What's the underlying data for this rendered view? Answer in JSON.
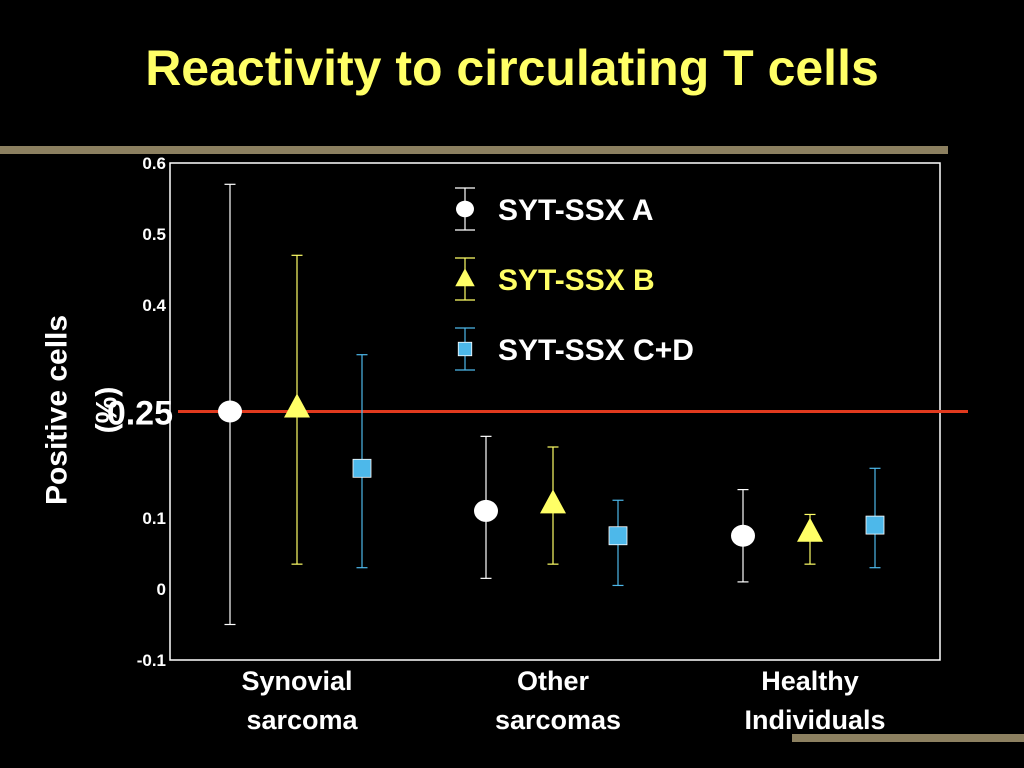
{
  "title": "Reactivity to circulating T cells",
  "colors": {
    "background": "#000000",
    "title": "#ffff66",
    "accent_bar": "#8c8060",
    "axis": "#ffffff",
    "reference_line": "#e03a1e"
  },
  "chart_data": {
    "type": "scatter",
    "subtype": "dot-with-error-bars",
    "title": "",
    "ylabel_lines": [
      "Positive cells",
      "(%)"
    ],
    "xlabel": "",
    "ylim": [
      -0.1,
      0.6
    ],
    "yticks": [
      {
        "value": 0.6,
        "label": "0.6"
      },
      {
        "value": 0.5,
        "label": "0.5"
      },
      {
        "value": 0.4,
        "label": "0.4"
      },
      {
        "value": 0.1,
        "label": "0.1"
      },
      {
        "value": 0,
        "label": "0"
      },
      {
        "value": -0.1,
        "label": "-0.1"
      }
    ],
    "reference_line": {
      "value": 0.25,
      "label": "0.25",
      "color": "#e03a1e"
    },
    "categories": [
      {
        "lines": [
          "Synovial",
          "sarcoma"
        ]
      },
      {
        "lines": [
          "Other",
          "sarcomas"
        ]
      },
      {
        "lines": [
          "Healthy",
          "Individuals"
        ]
      }
    ],
    "legend": {
      "placement": "top-right"
    },
    "series": [
      {
        "name": "SYT-SSX A",
        "marker": "circle",
        "color": "#ffffff",
        "label_color": "#ffffff",
        "points": [
          {
            "mean": 0.25,
            "low": -0.05,
            "high": 0.57
          },
          {
            "mean": 0.11,
            "low": 0.015,
            "high": 0.215
          },
          {
            "mean": 0.075,
            "low": 0.01,
            "high": 0.14
          }
        ]
      },
      {
        "name": "SYT-SSX B",
        "marker": "triangle",
        "color": "#ffff66",
        "label_color": "#ffff66",
        "points": [
          {
            "mean": 0.255,
            "low": 0.035,
            "high": 0.47
          },
          {
            "mean": 0.12,
            "low": 0.035,
            "high": 0.2
          },
          {
            "mean": 0.08,
            "low": 0.035,
            "high": 0.105
          }
        ]
      },
      {
        "name": "SYT-SSX C+D",
        "marker": "square",
        "color": "#4db8ea",
        "label_color": "#ffffff",
        "points": [
          {
            "mean": 0.17,
            "low": 0.03,
            "high": 0.33
          },
          {
            "mean": 0.075,
            "low": 0.005,
            "high": 0.125
          },
          {
            "mean": 0.09,
            "low": 0.03,
            "high": 0.17
          }
        ]
      }
    ]
  }
}
